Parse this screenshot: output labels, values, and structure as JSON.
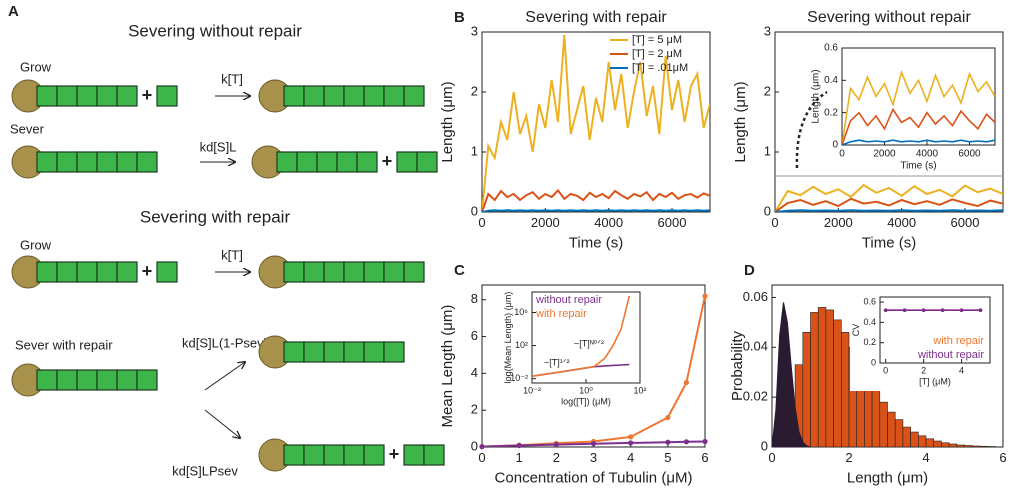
{
  "diagram": {
    "label": "A",
    "headings": [
      "Severing without repair",
      "Severing with repair"
    ],
    "steps": [
      "Grow",
      "Sever",
      "Grow",
      "Sever with repair"
    ],
    "rates": [
      "k[T]",
      "kd[S]L",
      "k[T]",
      "kd[S]L(1-Psev)",
      "kd[S]LPsev"
    ],
    "plus": "+"
  },
  "chart_data": [
    {
      "type": "line",
      "panel": "B",
      "title": "Severing with repair",
      "x_label": "Time (s)",
      "y_label": "Length (μm)",
      "x": [
        0,
        200,
        400,
        600,
        800,
        1000,
        1200,
        1400,
        1600,
        1800,
        2000,
        2200,
        2400,
        2600,
        2800,
        3000,
        3200,
        3400,
        3600,
        3800,
        4000,
        4200,
        4400,
        4600,
        4800,
        5000,
        5200,
        5400,
        5600,
        5800,
        6000,
        6200,
        6400,
        6600,
        6800,
        7000,
        7200
      ],
      "series": [
        {
          "name": "[T] = 5 μM",
          "color": "#EDB120",
          "values": [
            0,
            1.1,
            0.9,
            1.5,
            1.2,
            2.0,
            1.3,
            1.6,
            1.0,
            1.8,
            1.4,
            2.2,
            1.5,
            2.95,
            1.3,
            1.7,
            2.1,
            1.2,
            1.9,
            1.5,
            2.5,
            1.7,
            2.3,
            1.4,
            2.0,
            2.5,
            1.6,
            2.1,
            1.3,
            2.6,
            1.7,
            2.2,
            1.5,
            2.1,
            2.3,
            1.4,
            1.8
          ]
        },
        {
          "name": "[T] = 2 μM",
          "color": "#D95319",
          "values": [
            0,
            0.3,
            0.2,
            0.35,
            0.25,
            0.3,
            0.2,
            0.28,
            0.33,
            0.22,
            0.3,
            0.25,
            0.36,
            0.22,
            0.3,
            0.27,
            0.2,
            0.32,
            0.25,
            0.3,
            0.23,
            0.35,
            0.28,
            0.22,
            0.3,
            0.26,
            0.33,
            0.2,
            0.3,
            0.25,
            0.32,
            0.22,
            0.28,
            0.3,
            0.24,
            0.31,
            0.27
          ]
        },
        {
          "name": "[T] = .01μM",
          "color": "#0072BD",
          "values": [
            0,
            0.02,
            0.03,
            0.02,
            0.03,
            0.02,
            0.03,
            0.02,
            0.03,
            0.02,
            0.03,
            0.02,
            0.03,
            0.02,
            0.03,
            0.02,
            0.03,
            0.02,
            0.03,
            0.02,
            0.03,
            0.02,
            0.03,
            0.02,
            0.03,
            0.02,
            0.03,
            0.02,
            0.03,
            0.02,
            0.03,
            0.02,
            0.03,
            0.02,
            0.03,
            0.02,
            0.03
          ]
        }
      ],
      "xlim": [
        0,
        7200
      ],
      "xticks": [
        0,
        2000,
        4000,
        6000
      ],
      "ylim": [
        0,
        3
      ],
      "yticks": [
        0,
        1,
        2,
        3
      ],
      "legend": "upper right",
      "legend_style": "line"
    },
    {
      "type": "line",
      "title": "Severing without repair",
      "x_label": "Time (s)",
      "y_label": "Length (μm)",
      "x": [
        0,
        400,
        800,
        1200,
        1600,
        2000,
        2400,
        2800,
        3200,
        3600,
        4000,
        4400,
        4800,
        5200,
        5600,
        6000,
        6400,
        6800,
        7200
      ],
      "series": [
        {
          "color": "#EDB120",
          "values": [
            0,
            0.35,
            0.28,
            0.42,
            0.3,
            0.38,
            0.25,
            0.45,
            0.32,
            0.4,
            0.27,
            0.43,
            0.3,
            0.37,
            0.26,
            0.44,
            0.33,
            0.39,
            0.3
          ]
        },
        {
          "color": "#D95319",
          "values": [
            0,
            0.15,
            0.2,
            0.12,
            0.18,
            0.1,
            0.22,
            0.14,
            0.17,
            0.11,
            0.2,
            0.13,
            0.18,
            0.12,
            0.21,
            0.15,
            0.1,
            0.19,
            0.14
          ]
        },
        {
          "color": "#0072BD",
          "values": [
            0,
            0.02,
            0.03,
            0.02,
            0.025,
            0.02,
            0.03,
            0.02,
            0.025,
            0.02,
            0.03,
            0.02,
            0.025,
            0.02,
            0.03,
            0.02,
            0.025,
            0.02,
            0.03
          ]
        }
      ],
      "xlim": [
        0,
        7200
      ],
      "xticks": [
        0,
        2000,
        4000,
        6000
      ],
      "ylim": [
        0,
        3
      ],
      "yticks": [
        0,
        1,
        2,
        3
      ]
    },
    {
      "type": "line",
      "x_label": "Time (s)",
      "y_label": "Length (μm)",
      "x": [
        0,
        400,
        800,
        1200,
        1600,
        2000,
        2400,
        2800,
        3200,
        3600,
        4000,
        4400,
        4800,
        5200,
        5600,
        6000,
        6400,
        6800,
        7200
      ],
      "series": [
        {
          "color": "#EDB120",
          "values": [
            0,
            0.35,
            0.28,
            0.42,
            0.3,
            0.38,
            0.25,
            0.45,
            0.32,
            0.4,
            0.27,
            0.43,
            0.3,
            0.37,
            0.26,
            0.44,
            0.33,
            0.39,
            0.3
          ]
        },
        {
          "color": "#D95319",
          "values": [
            0,
            0.15,
            0.2,
            0.12,
            0.18,
            0.1,
            0.22,
            0.14,
            0.17,
            0.11,
            0.2,
            0.13,
            0.18,
            0.12,
            0.21,
            0.15,
            0.1,
            0.19,
            0.14
          ]
        },
        {
          "color": "#0072BD",
          "values": [
            0,
            0.02,
            0.03,
            0.02,
            0.025,
            0.02,
            0.03,
            0.02,
            0.025,
            0.02,
            0.03,
            0.02,
            0.025,
            0.02,
            0.03,
            0.02,
            0.025,
            0.02,
            0.03
          ]
        }
      ],
      "xlim": [
        0,
        7200
      ],
      "xticks": [
        0,
        2000,
        4000,
        6000
      ],
      "ylim": [
        0,
        0.6
      ],
      "yticks": [
        0,
        0.2,
        0.4,
        0.6
      ]
    },
    {
      "type": "line",
      "panel": "C",
      "x_label": "Concentration of Tubulin (μM)",
      "y_label": "Mean Length (μm)",
      "markers": true,
      "x": [
        0,
        1,
        2,
        3,
        4,
        5,
        5.5,
        6
      ],
      "series": [
        {
          "color": "#EE7733",
          "values": [
            0.02,
            0.1,
            0.2,
            0.3,
            0.55,
            1.6,
            3.5,
            8.2
          ]
        },
        {
          "color": "#7E2F8E",
          "values": [
            0.02,
            0.08,
            0.13,
            0.18,
            0.22,
            0.26,
            0.28,
            0.3
          ]
        }
      ],
      "xlim": [
        0,
        6
      ],
      "xticks": [
        0,
        1,
        2,
        3,
        4,
        5,
        6
      ],
      "ylim": [
        0,
        8.8
      ],
      "yticks": [
        0,
        2,
        4,
        6,
        8
      ]
    },
    {
      "type": "line",
      "x_label": "log([T]) (μM)",
      "y_label": "log(Mean Length) (μm)",
      "xlog": true,
      "ylog": true,
      "x": [
        0.01,
        0.1,
        1,
        2,
        5,
        10,
        20,
        40
      ],
      "series": [
        {
          "name": "without repair",
          "color": "#7E2F8E",
          "values": [
            0.02,
            0.06,
            0.2,
            0.28,
            0.35,
            0.4,
            0.45,
            0.5
          ]
        },
        {
          "name": "with repair",
          "color": "#EE7733",
          "values": [
            0.02,
            0.06,
            0.2,
            0.3,
            3,
            100,
            10000,
            100000000
          ]
        }
      ],
      "xlim": [
        0.01,
        100
      ],
      "xticks": [
        {
          "value": 0.01,
          "label": "10⁻²"
        },
        {
          "value": 1,
          "label": "10⁰"
        },
        {
          "value": 100,
          "label": "10²"
        }
      ],
      "ylim": [
        0.003,
        300000000
      ],
      "yticks": [
        {
          "value": 0.01,
          "label": "10⁻²"
        },
        {
          "value": 100,
          "label": "10²"
        },
        {
          "value": 1000000,
          "label": "10⁶"
        }
      ],
      "legend": "upper left",
      "legend_style": "text",
      "annotations": [
        "~[T]¹ᐟ²",
        "~[T]ᴺ⁰ᐟ²"
      ]
    },
    {
      "type": "histogram",
      "panel": "D",
      "x_label": "Length (μm)",
      "y_label": "Probability",
      "bins": [
        0,
        0.2,
        0.4,
        0.6,
        0.8,
        1.0,
        1.2,
        1.4,
        1.6,
        1.8,
        2.0,
        2.2,
        2.4,
        2.6,
        2.8,
        3.0,
        3.2,
        3.4,
        3.6,
        3.8,
        4.0,
        4.2,
        4.4,
        4.6,
        4.8,
        5.0,
        5.2,
        5.4,
        5.6,
        5.8
      ],
      "values": [
        0.001,
        0.006,
        0.018,
        0.033,
        0.046,
        0.054,
        0.056,
        0.055,
        0.051,
        0.046,
        0.04,
        0.034,
        0.028,
        0.023,
        0.018,
        0.014,
        0.011,
        0.008,
        0.006,
        0.0045,
        0.0033,
        0.0024,
        0.0017,
        0.0012,
        0.0008,
        0.0006,
        0.0004,
        0.0003,
        0.0002
      ],
      "color": "#D95319",
      "curve": {
        "x": [
          0,
          0.1,
          0.2,
          0.3,
          0.4,
          0.5,
          0.6,
          0.7,
          0.8,
          0.9,
          1.0
        ],
        "values": [
          0,
          0.015,
          0.045,
          0.058,
          0.05,
          0.032,
          0.016,
          0.006,
          0.002,
          0.0005,
          0
        ],
        "color": "#2A1B30"
      },
      "xlim": [
        0,
        6
      ],
      "xticks": [
        0,
        2,
        4,
        6
      ],
      "ylim": [
        0,
        0.065
      ],
      "yticks": [
        0,
        0.02,
        0.04,
        0.06
      ]
    },
    {
      "type": "line",
      "x_label": "[T] (μM)",
      "y_label": "CV",
      "markers": true,
      "x": [
        0,
        1,
        2,
        3,
        4,
        5
      ],
      "series": [
        {
          "name": "with repair",
          "color": "#EE7733",
          "values": [
            0.52,
            0.52,
            0.52,
            0.52,
            0.52,
            0.52
          ]
        },
        {
          "name": "without repair",
          "color": "#7E2F8E",
          "values": [
            0.52,
            0.52,
            0.52,
            0.52,
            0.52,
            0.52
          ]
        }
      ],
      "xlim": [
        -0.3,
        5.5
      ],
      "xticks": [
        0,
        2,
        4
      ],
      "ylim": [
        0,
        0.65
      ],
      "yticks": [
        0,
        0.2,
        0.4,
        0.6
      ],
      "legend": "lower right",
      "legend_style": "text"
    }
  ]
}
